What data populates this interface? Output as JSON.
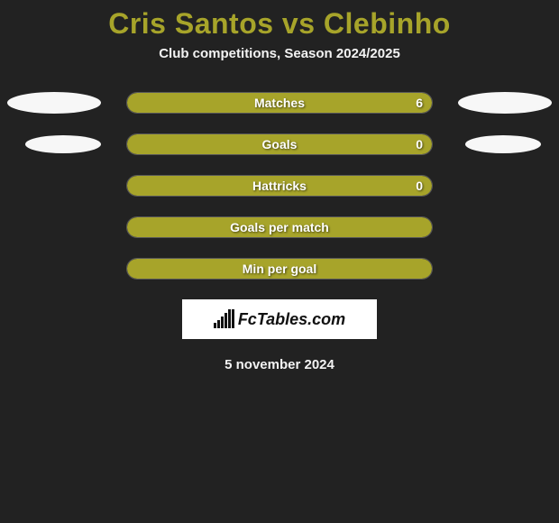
{
  "title": "Cris Santos vs Clebinho",
  "subtitle": "Club competitions, Season 2024/2025",
  "date": "5 november 2024",
  "logo_text": "FcTables.com",
  "background_color": "#222222",
  "title_color": "#a7a42a",
  "text_color": "#f3f3f3",
  "bar_color": "#a7a42a",
  "ellipse_color": "#f7f7f7",
  "bar_track_width": 340,
  "bar_track_height": 24,
  "rows": [
    {
      "label": "Matches",
      "left_value": "",
      "right_value": "6",
      "left_pct": 0,
      "right_pct": 100,
      "full": true,
      "ellipse_left": true,
      "ellipse_right": true,
      "ellipse_size": "big"
    },
    {
      "label": "Goals",
      "left_value": "",
      "right_value": "0",
      "left_pct": 0,
      "right_pct": 100,
      "full": true,
      "ellipse_left": true,
      "ellipse_right": true,
      "ellipse_size": "small"
    },
    {
      "label": "Hattricks",
      "left_value": "",
      "right_value": "0",
      "left_pct": 0,
      "right_pct": 100,
      "full": true,
      "ellipse_left": false,
      "ellipse_right": false
    },
    {
      "label": "Goals per match",
      "left_value": "",
      "right_value": "",
      "left_pct": 0,
      "right_pct": 0,
      "full": false,
      "ellipse_left": false,
      "ellipse_right": false
    },
    {
      "label": "Min per goal",
      "left_value": "",
      "right_value": "",
      "left_pct": 0,
      "right_pct": 0,
      "full": false,
      "ellipse_left": false,
      "ellipse_right": false
    }
  ],
  "logo_bars": [
    6,
    9,
    13,
    17,
    21,
    21
  ]
}
